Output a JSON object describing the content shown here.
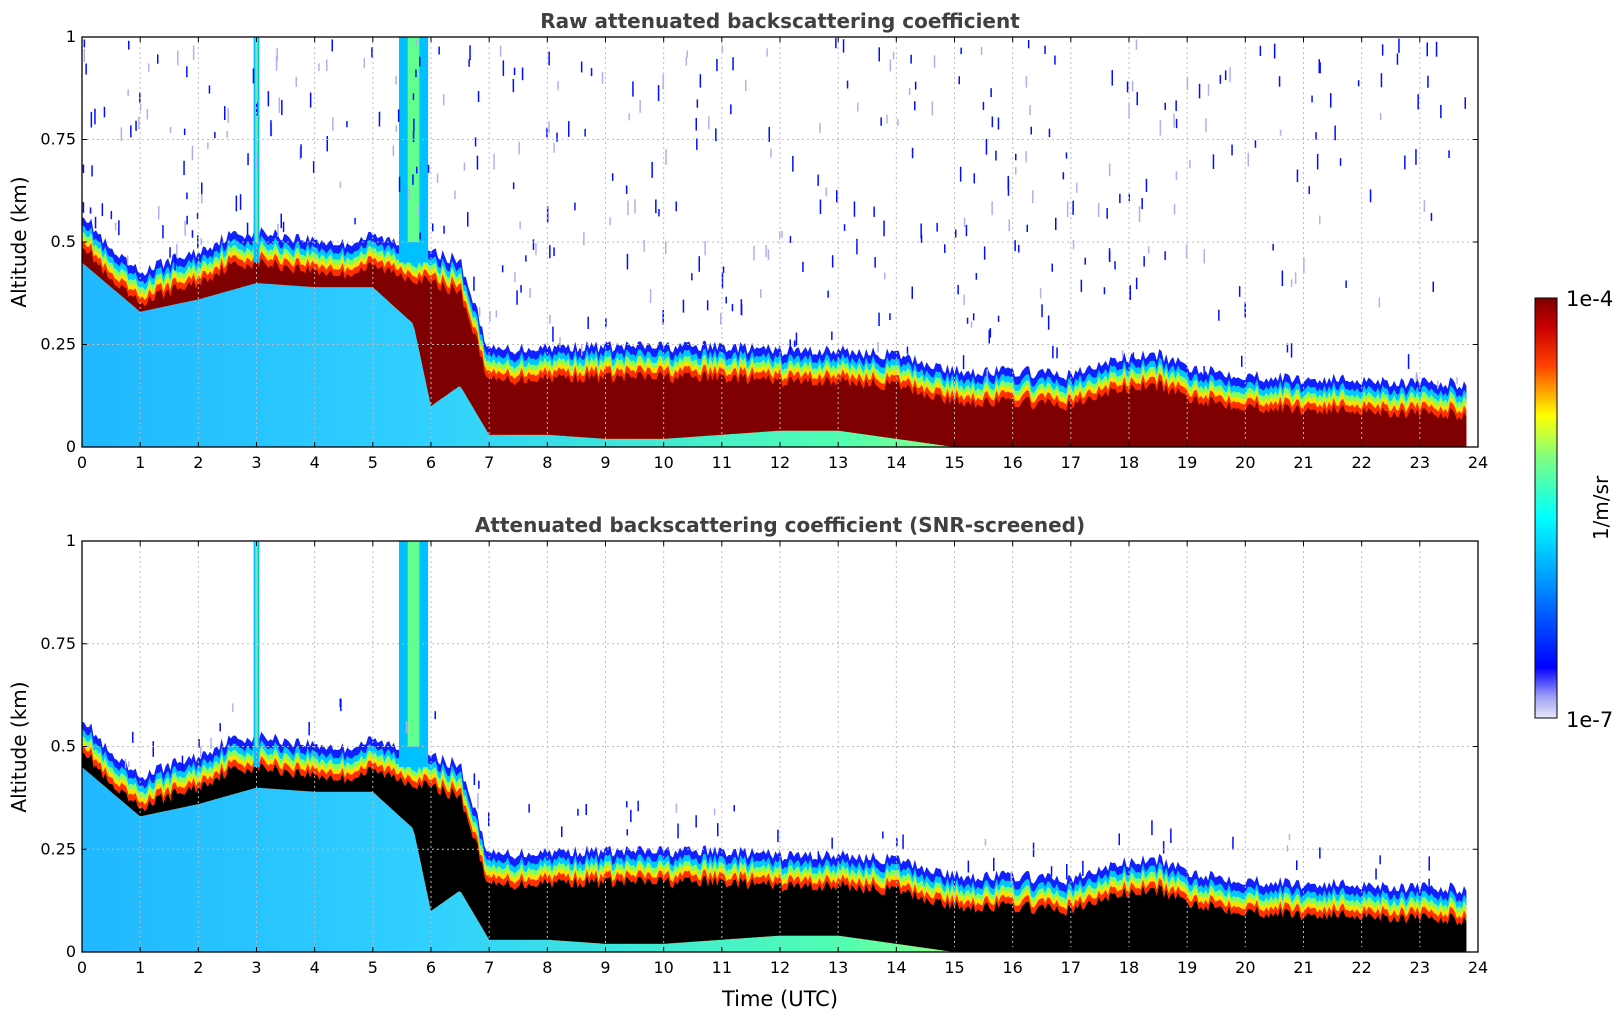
{
  "figure": {
    "xlabel": "Time (UTC)",
    "colorbar": {
      "label": "1/m/sr",
      "max_label": "1e-4",
      "min_label": "1e-7",
      "vmin": 1e-07,
      "vmax": 0.0001,
      "scale": "log",
      "colormap": "jet",
      "colors": [
        "#e8e8f8",
        "#0000ff",
        "#00ffff",
        "#ffff00",
        "#ff0000",
        "#7f0000"
      ]
    }
  },
  "chart_data": [
    {
      "type": "heatmap",
      "id": "raw",
      "title": "Raw attenuated backscattering coefficient",
      "xlabel": "",
      "ylabel": "Altitude (km)",
      "xlim": [
        0,
        24
      ],
      "ylim": [
        0,
        1
      ],
      "xticks": [
        "0",
        "1",
        "2",
        "3",
        "4",
        "5",
        "6",
        "7",
        "8",
        "9",
        "10",
        "11",
        "12",
        "13",
        "14",
        "15",
        "16",
        "17",
        "18",
        "19",
        "20",
        "21",
        "22",
        "23",
        "24"
      ],
      "yticks": [
        "0",
        "0.25",
        "0.5",
        "0.75",
        "1"
      ],
      "grid": true,
      "saturated_color": "#7f0000",
      "plume_top_km": [
        [
          0,
          0.5
        ],
        [
          0.5,
          0.4
        ],
        [
          1,
          0.35
        ],
        [
          1.5,
          0.38
        ],
        [
          2,
          0.4
        ],
        [
          2.5,
          0.44
        ],
        [
          3,
          0.45
        ],
        [
          3.5,
          0.44
        ],
        [
          4,
          0.43
        ],
        [
          4.5,
          0.42
        ],
        [
          5,
          0.44
        ],
        [
          5.5,
          0.42
        ],
        [
          6,
          0.4
        ],
        [
          6.5,
          0.38
        ],
        [
          6.8,
          0.25
        ],
        [
          7,
          0.16
        ],
        [
          8,
          0.17
        ],
        [
          9,
          0.17
        ],
        [
          10,
          0.17
        ],
        [
          11,
          0.17
        ],
        [
          12,
          0.16
        ],
        [
          13,
          0.16
        ],
        [
          14,
          0.15
        ],
        [
          15,
          0.11
        ],
        [
          16,
          0.11
        ],
        [
          17,
          0.1
        ],
        [
          17.8,
          0.14
        ],
        [
          18.5,
          0.15
        ],
        [
          19,
          0.12
        ],
        [
          20,
          0.1
        ],
        [
          21,
          0.09
        ],
        [
          22,
          0.09
        ],
        [
          23,
          0.08
        ],
        [
          23.8,
          0.08
        ]
      ],
      "plume_bottom_km": [
        [
          0,
          0.45
        ],
        [
          1,
          0.33
        ],
        [
          2,
          0.36
        ],
        [
          3,
          0.4
        ],
        [
          4,
          0.39
        ],
        [
          5,
          0.39
        ],
        [
          5.7,
          0.3
        ],
        [
          6,
          0.1
        ],
        [
          6.5,
          0.15
        ],
        [
          7,
          0.03
        ],
        [
          8,
          0.03
        ],
        [
          9,
          0.02
        ],
        [
          10,
          0.02
        ],
        [
          11,
          0.03
        ],
        [
          12,
          0.04
        ],
        [
          13,
          0.04
        ],
        [
          14,
          0.02
        ],
        [
          15,
          0.0
        ],
        [
          24,
          0.0
        ]
      ],
      "data_end_h": 23.8
    },
    {
      "type": "heatmap",
      "id": "snr",
      "title": "Attenuated backscattering coefficient (SNR-screened)",
      "xlabel": "Time (UTC)",
      "ylabel": "Altitude (km)",
      "xlim": [
        0,
        24
      ],
      "ylim": [
        0,
        1
      ],
      "xticks": [
        "0",
        "1",
        "2",
        "3",
        "4",
        "5",
        "6",
        "7",
        "8",
        "9",
        "10",
        "11",
        "12",
        "13",
        "14",
        "15",
        "16",
        "17",
        "18",
        "19",
        "20",
        "21",
        "22",
        "23",
        "24"
      ],
      "yticks": [
        "0",
        "0.25",
        "0.5",
        "0.75",
        "1"
      ],
      "grid": true,
      "saturated_color": "#000000",
      "plume_top_km": [
        [
          0,
          0.5
        ],
        [
          0.5,
          0.4
        ],
        [
          1,
          0.35
        ],
        [
          1.5,
          0.38
        ],
        [
          2,
          0.4
        ],
        [
          2.5,
          0.44
        ],
        [
          3,
          0.45
        ],
        [
          3.5,
          0.44
        ],
        [
          4,
          0.43
        ],
        [
          4.5,
          0.42
        ],
        [
          5,
          0.44
        ],
        [
          5.5,
          0.42
        ],
        [
          6,
          0.4
        ],
        [
          6.5,
          0.38
        ],
        [
          6.8,
          0.25
        ],
        [
          7,
          0.16
        ],
        [
          8,
          0.17
        ],
        [
          9,
          0.17
        ],
        [
          10,
          0.17
        ],
        [
          11,
          0.17
        ],
        [
          12,
          0.16
        ],
        [
          13,
          0.16
        ],
        [
          14,
          0.15
        ],
        [
          15,
          0.11
        ],
        [
          16,
          0.11
        ],
        [
          17,
          0.1
        ],
        [
          17.8,
          0.14
        ],
        [
          18.5,
          0.15
        ],
        [
          19,
          0.12
        ],
        [
          20,
          0.1
        ],
        [
          21,
          0.09
        ],
        [
          22,
          0.09
        ],
        [
          23,
          0.08
        ],
        [
          23.8,
          0.08
        ]
      ],
      "plume_bottom_km": [
        [
          0,
          0.45
        ],
        [
          1,
          0.33
        ],
        [
          2,
          0.36
        ],
        [
          3,
          0.4
        ],
        [
          4,
          0.39
        ],
        [
          5,
          0.39
        ],
        [
          5.7,
          0.3
        ],
        [
          6,
          0.1
        ],
        [
          6.5,
          0.15
        ],
        [
          7,
          0.03
        ],
        [
          8,
          0.03
        ],
        [
          9,
          0.02
        ],
        [
          10,
          0.02
        ],
        [
          11,
          0.03
        ],
        [
          12,
          0.04
        ],
        [
          13,
          0.04
        ],
        [
          14,
          0.02
        ],
        [
          15,
          0.0
        ],
        [
          24,
          0.0
        ]
      ],
      "data_end_h": 23.8
    }
  ]
}
